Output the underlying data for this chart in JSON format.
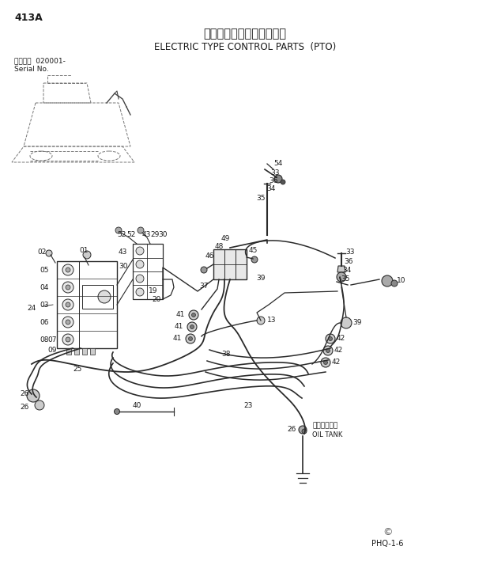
{
  "title_jp": "電気式操作用品（ＰＴＯ）",
  "title_en": "ELECTRIC TYPE CONTROL PARTS  (PTO)",
  "page_id": "413A",
  "serial_line1": "通用号機  020001-",
  "serial_line2": "Serial No.",
  "doc_number": "PHQ-1-6",
  "copyright_symbol": "©",
  "bg_color": "#ffffff",
  "text_color": "#1a1a1a",
  "line_color": "#2a2a2a",
  "oil_tank_jp": "オイルタンク",
  "oil_tank_en": "OIL TANK"
}
